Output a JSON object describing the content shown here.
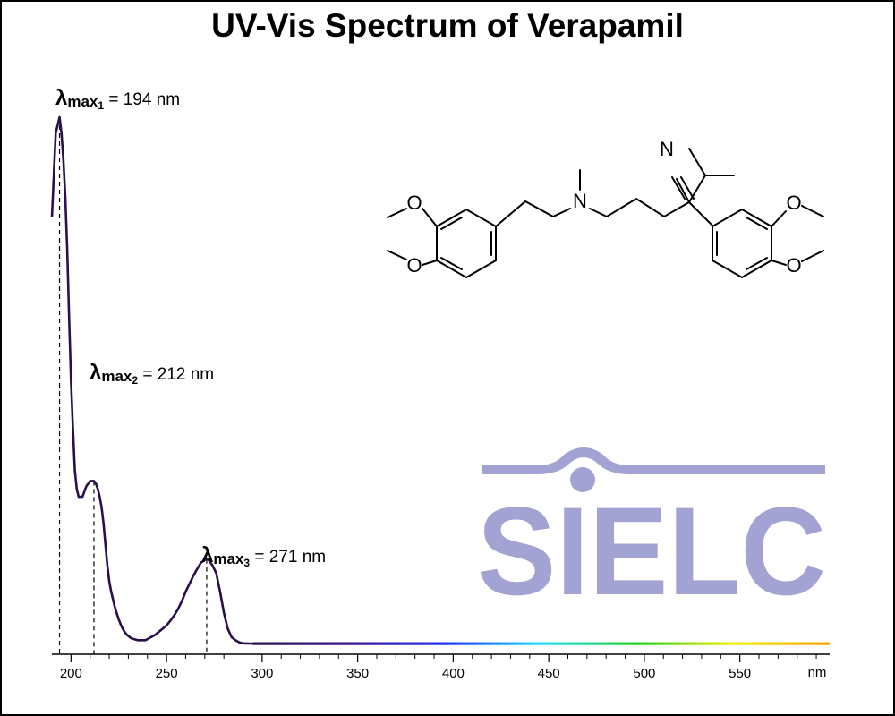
{
  "colors": {
    "curve": "#2a0f4a",
    "logo": "#a3a3d3",
    "axis": "#000000",
    "gradient_stops": [
      "#2a0f4a",
      "#3a0f8a",
      "#2030ff",
      "#20e0ff",
      "#20d020",
      "#f0f000",
      "#f7a000"
    ]
  },
  "logo": {
    "text": "SIELC",
    "icon": "sielc-logo-icon"
  },
  "molecule": {
    "icon": "verapamil-structure-icon",
    "atom_labels": [
      "O",
      "O",
      "N",
      "N",
      "O",
      "O"
    ]
  },
  "chart_data": {
    "type": "line",
    "title": "UV-Vis Spectrum of Verapamil",
    "xlabel": "",
    "ylabel": "",
    "x_unit_label": "nm",
    "xlim": [
      190,
      597
    ],
    "ylim": [
      0,
      1
    ],
    "x_ticks": [
      200,
      250,
      300,
      350,
      400,
      450,
      500,
      550
    ],
    "x_tick_labels": [
      "200",
      "250",
      "300",
      "350",
      "400",
      "450",
      "500",
      "550"
    ],
    "grid": false,
    "series": [
      {
        "x": [
          190,
          192,
          194,
          195,
          196,
          197,
          198,
          199,
          200,
          201,
          202,
          203,
          204,
          205,
          206,
          207,
          208,
          209,
          210,
          211,
          212,
          213,
          214,
          215,
          216,
          217,
          218,
          219,
          220,
          221,
          222,
          223,
          224,
          225,
          226,
          227,
          228,
          229,
          230,
          231,
          232,
          233,
          234,
          235,
          236,
          237,
          238,
          239,
          240,
          242,
          244,
          246,
          248,
          250,
          252,
          254,
          256,
          258,
          260,
          262,
          264,
          266,
          268,
          270,
          271,
          272,
          274,
          276,
          278,
          280,
          282,
          284,
          286,
          288,
          290,
          295,
          300,
          350,
          400,
          450,
          500,
          550,
          597
        ],
        "y": [
          0.81,
          0.97,
          1.0,
          0.97,
          0.92,
          0.85,
          0.75,
          0.62,
          0.5,
          0.41,
          0.33,
          0.295,
          0.28,
          0.28,
          0.28,
          0.29,
          0.3,
          0.305,
          0.31,
          0.31,
          0.31,
          0.305,
          0.295,
          0.28,
          0.26,
          0.23,
          0.19,
          0.15,
          0.12,
          0.1,
          0.085,
          0.07,
          0.058,
          0.047,
          0.038,
          0.03,
          0.024,
          0.019,
          0.016,
          0.013,
          0.011,
          0.01,
          0.009,
          0.008,
          0.008,
          0.008,
          0.008,
          0.008,
          0.01,
          0.014,
          0.018,
          0.024,
          0.03,
          0.036,
          0.045,
          0.055,
          0.067,
          0.082,
          0.1,
          0.115,
          0.13,
          0.143,
          0.155,
          0.16,
          0.162,
          0.16,
          0.15,
          0.135,
          0.1,
          0.06,
          0.03,
          0.014,
          0.008,
          0.004,
          0.002,
          0.0015,
          0.001,
          0.001,
          0.001,
          0.001,
          0.001,
          0.001,
          0.001
        ]
      }
    ],
    "annotations": [
      {
        "sym": "λ",
        "sub1": "max",
        "sub2": "1",
        "text": " = 194 nm",
        "x": 194,
        "y": 1.0
      },
      {
        "sym": "λ",
        "sub1": "max",
        "sub2": "2",
        "text": " = 212 nm",
        "x": 212,
        "y": 0.31
      },
      {
        "sym": "λ",
        "sub1": "max",
        "sub2": "3",
        "text": " = 271 nm",
        "x": 271,
        "y": 0.162
      }
    ]
  }
}
